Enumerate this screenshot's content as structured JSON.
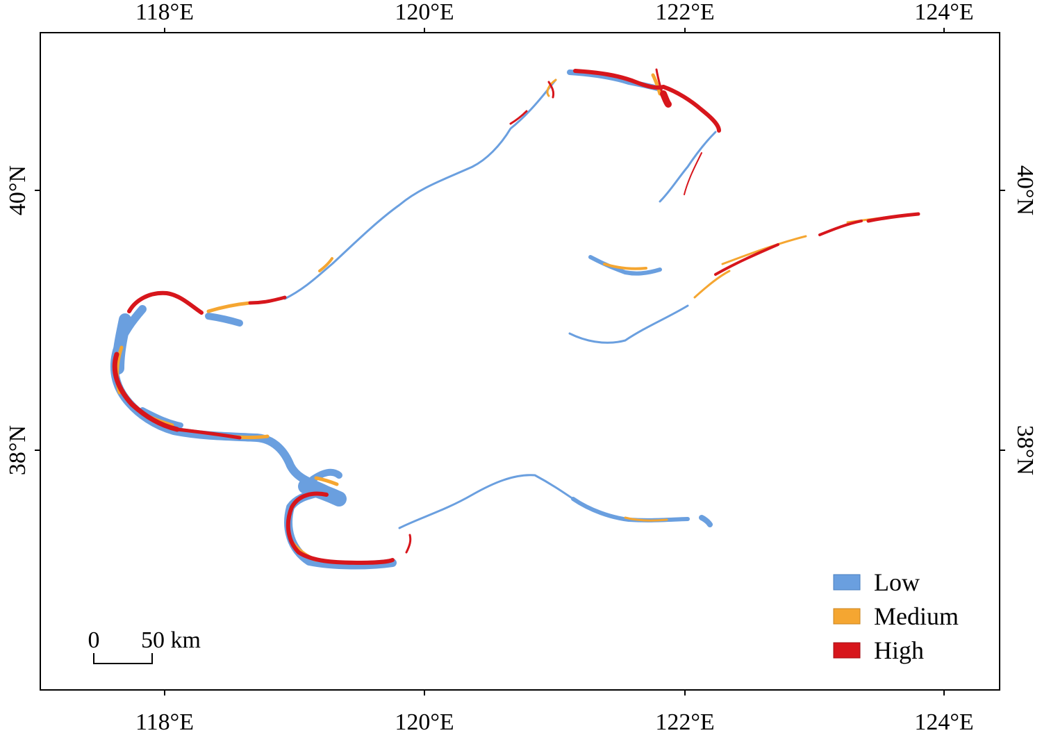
{
  "map": {
    "x_ticks": [
      "118°E",
      "120°E",
      "122°E",
      "124°E"
    ],
    "y_ticks": [
      "40°N",
      "38°N"
    ],
    "legend": [
      {
        "label": "Low",
        "color": "#6a9fdf"
      },
      {
        "label": "Medium",
        "color": "#f5a631"
      },
      {
        "label": "High",
        "color": "#d7161c"
      }
    ],
    "scale_bar": {
      "start_label": "0",
      "end_label": "50 km"
    }
  }
}
